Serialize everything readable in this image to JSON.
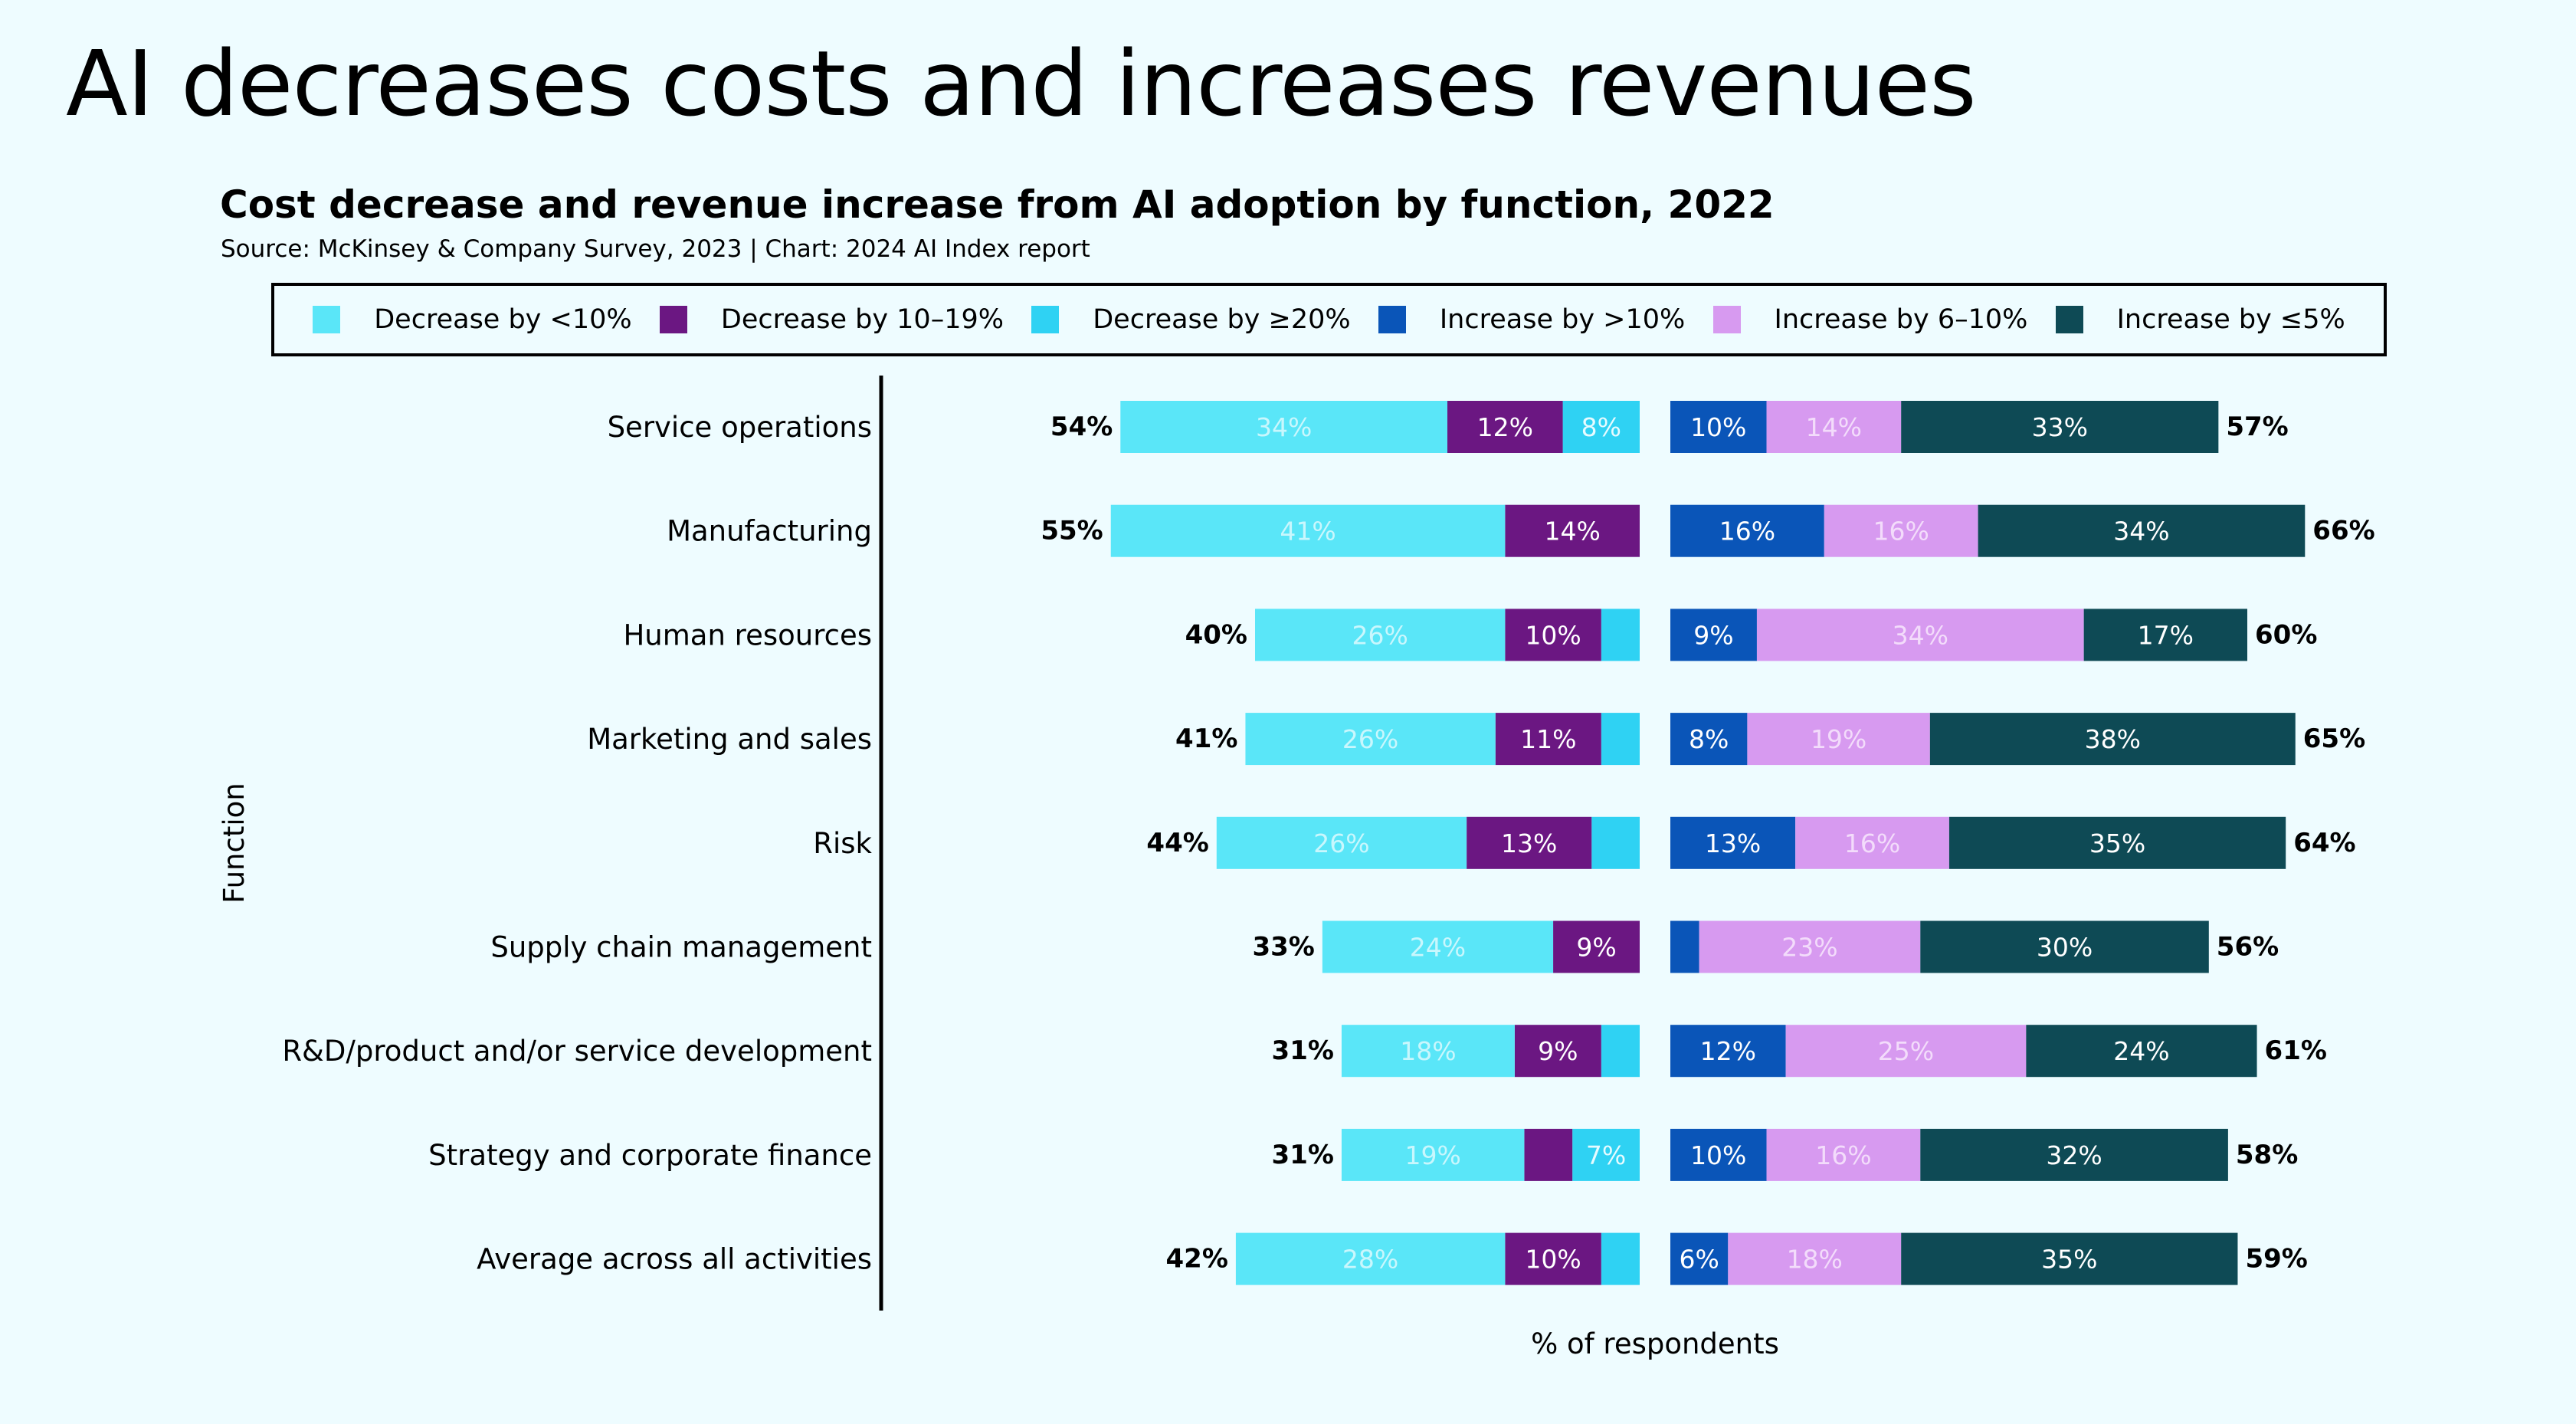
{
  "slide": {
    "title": "AI decreases costs and increases revenues"
  },
  "colors": {
    "cost_lt10": "#5ae6f8",
    "cost_10_19": "#6b1782",
    "cost_ge20": "#2fd2f3",
    "rev_gt10": "#0a55b8",
    "rev_6_10": "#d79af0",
    "rev_le5": "#0e4a55"
  },
  "chart_data": {
    "type": "bar",
    "orientation": "horizontal-diverging",
    "title": "Cost decrease and revenue increase from AI adoption by function, 2022",
    "subtitle": "Source: McKinsey & Company Survey, 2023 | Chart: 2024 AI Index report",
    "xlabel": "% of respondents",
    "ylabel": "Function",
    "legend_position": "top",
    "legend": [
      {
        "label": "Decrease by <10%",
        "color": "#5ae6f8"
      },
      {
        "label": "Decrease by 10–19%",
        "color": "#6b1782"
      },
      {
        "label": "Decrease by ≥20%",
        "color": "#2fd2f3"
      },
      {
        "label": "Increase by >10%",
        "color": "#0a55b8"
      },
      {
        "label": "Increase by 6–10%",
        "color": "#d79af0"
      },
      {
        "label": "Increase by ≤5%",
        "color": "#0e4a55"
      }
    ],
    "categories": [
      "Service operations",
      "Manufacturing",
      "Human resources",
      "Marketing and sales",
      "Risk",
      "Supply chain management",
      "R&D/product and/or service development",
      "Strategy and corporate finance",
      "Average across all activities"
    ],
    "cost_series": [
      {
        "name": "Decrease by <10%",
        "values": [
          34,
          41,
          26,
          26,
          26,
          24,
          18,
          19,
          28
        ],
        "labels": [
          "34%",
          "41%",
          "26%",
          "26%",
          "26%",
          "24%",
          "18%",
          "19%",
          "28%"
        ]
      },
      {
        "name": "Decrease by 10–19%",
        "values": [
          12,
          14,
          10,
          11,
          13,
          9,
          9,
          5,
          10
        ],
        "labels": [
          "12%",
          "14%",
          "10%",
          "11%",
          "13%",
          "9%",
          "9%",
          "",
          "10%"
        ]
      },
      {
        "name": "Decrease by ≥20%",
        "values": [
          8,
          0,
          4,
          4,
          5,
          0,
          4,
          7,
          4
        ],
        "labels": [
          "8%",
          "",
          "",
          "",
          "",
          "",
          "",
          "7%",
          ""
        ]
      }
    ],
    "revenue_series": [
      {
        "name": "Increase by >10%",
        "values": [
          10,
          16,
          9,
          8,
          13,
          3,
          12,
          10,
          6
        ],
        "labels": [
          "10%",
          "16%",
          "9%",
          "8%",
          "13%",
          "",
          "12%",
          "10%",
          "6%"
        ]
      },
      {
        "name": "Increase by 6–10%",
        "values": [
          14,
          16,
          34,
          19,
          16,
          23,
          25,
          16,
          18
        ],
        "labels": [
          "14%",
          "16%",
          "34%",
          "19%",
          "16%",
          "23%",
          "25%",
          "16%",
          "18%"
        ]
      },
      {
        "name": "Increase by ≤5%",
        "values": [
          33,
          34,
          17,
          38,
          35,
          30,
          24,
          32,
          35
        ],
        "labels": [
          "33%",
          "34%",
          "17%",
          "38%",
          "35%",
          "30%",
          "24%",
          "32%",
          "35%"
        ]
      }
    ],
    "cost_totals": [
      "54%",
      "55%",
      "40%",
      "41%",
      "44%",
      "33%",
      "31%",
      "31%",
      "42%"
    ],
    "revenue_totals": [
      "57%",
      "66%",
      "60%",
      "65%",
      "64%",
      "56%",
      "61%",
      "58%",
      "59%"
    ]
  }
}
